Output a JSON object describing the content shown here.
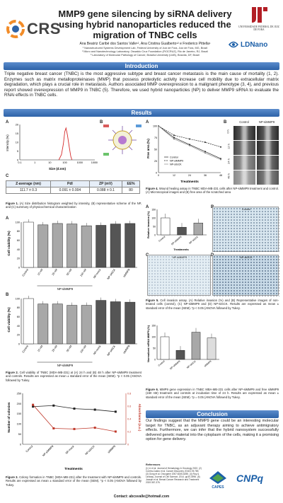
{
  "header": {
    "logo_text": "CRS",
    "title_line1": "MMP9 gene silencing by siRNA delivery",
    "title_line2": "using hybrid nanoparticles reduced the",
    "title_line3": "migration of TNBC cells",
    "authors": "Ana Beatriz Caribé dos Santos Valle¹², Ana Cristina Gualberto¹² e Frederico Pittella¹",
    "affil1": "¹ Nanostructured Systems Development Lab, Federal University of Juiz de Fora, Juiz de Fora, MG, Brazil",
    "affil2": "² Micro and Nanotechnology Laboratory, Oswaldo Cruz Foundation (FIOCRUZ), Rio de Janeiro, RJ, Brazil",
    "affil3": "³ Laboratory of Molecular Pathology of Cancer, Brasília University (UnB), Brasília, DF, Brazil",
    "ufjf_text": "UNIVERSIDADE FEDERAL DE JUIZ DE FORA",
    "ldnano": "LDNano"
  },
  "sections": {
    "introduction": "Introduction",
    "results": "Results",
    "conclusion": "Conclusion"
  },
  "introduction_text": "Triple negative breast cancer (TNBC) is the most aggressive subtype and breast cancer metastasis is the main cause of mortality (1, 2). Enzymes such as matrix metalloproteinases (MMP) that possess proteolytic activity increase cell mobility due to extracellular matrix degradation, which plays a crucial role in metastasis. Authors associated MMP overexpression to a malignant phenotype (3, 4), and previous report showed overexpression of MMP9 in TNBC (5). Therefore, we used hybrid nanoparticles (NP) to deliver MMP9 siRNA to evaluate the RNAi effects in TNBC cells.",
  "fig1": {
    "a_label": "A",
    "b_label": "B",
    "c_label": "C",
    "ylabel": "Intensity (%)",
    "xlabel": "Size (d.nm)",
    "xticks": [
      "0.1",
      "1",
      "10",
      "100",
      "1000",
      "10000"
    ],
    "yticks": [
      "0",
      "5",
      "10",
      "15",
      "20"
    ],
    "table_headers": [
      "Z-average (nm)",
      "PdI",
      "ZP (mV)",
      "EE%"
    ],
    "table_values": [
      "111.7 ± 0.3",
      "0.091 ± 0.004",
      "0.088 ± 0.1",
      "80"
    ],
    "caption_bold": "Figure 1.",
    "caption": " (A) Size distribution histogram weighted by intensity, (B) representative scheme of the NP, and (C) summary of physicochemical characterization"
  },
  "fig2": {
    "a_label": "A",
    "b_label": "B",
    "ylabel": "Cell viability (%)",
    "yticks": [
      "0",
      "20",
      "40",
      "60",
      "80",
      "100"
    ],
    "categories": [
      "Control",
      "10 nM",
      "25 nM",
      "50 nM",
      "100 nM",
      "NP-mock",
      "NP-siGCK",
      "siMMP9"
    ],
    "group_label": "NP-siMMP9",
    "caption_bold": "Figure 2.",
    "caption": " Cell viability of TNBC (MDA-MB-231) at (A) 24 h and (B) 48 h after NP-siMMP9 treatment and controls. Results are expressed as mean ± standard error of the mean (SEM). *p < 0.05 (ANOVA followed by Tukey."
  },
  "fig3": {
    "ylabel_left": "Number of colonies",
    "ylabel_right": "Absorbance (a.u.)",
    "xlabel": "Treatments",
    "categories": [
      "Control",
      "NP-siMMP9",
      "NP-mock",
      "NP-siGCK",
      "siMMP9"
    ],
    "caption_bold": "Figure 3.",
    "caption": " Colony formation in TNBC (MDA-MB-231) after the treatment with NP-siMMP9 and controls. Results are expressed as mean ± standard error of the mean (SEM). *p < 0.05 (ANOVA followed by Tukey."
  },
  "fig4": {
    "a_label": "A",
    "b_label": "B",
    "ylabel": "Free area (%)",
    "xlabel": "Treatments",
    "xticks": [
      "0",
      "12",
      "24",
      "36",
      "48"
    ],
    "legend": [
      "Control",
      "NP-siMMP9",
      "NP-siGCK"
    ],
    "col_control": "Control",
    "col_treated": "NP-siMMP9",
    "rows": [
      "0 h",
      "12 h",
      "24 h",
      "48 h"
    ],
    "caption_bold": "Figure 4.",
    "caption": " Wound healing assay in TNBC MDA-MB-231 cells after NP-siMMP9 treatment and control. (A) Microscopical images and (B) free area of the scratched area"
  },
  "fig5": {
    "a_label": "A",
    "b_label": "B",
    "c_label": "C",
    "d_label": "D",
    "ylabel": "Relative invasion (%)",
    "xlabel": "Treatments",
    "categories": [
      "Control",
      "NP-siMMP9",
      "NP-siGCK"
    ],
    "img_b": "Control",
    "img_c": "NP-siMMP9",
    "img_d": "NP-siGCK",
    "caption_bold": "Figure 5.",
    "caption": " Cell invasion assay. (A) Relative invasion (%) and (B) Representative images of non-treated cells (control), (C) NP-siMMP9 and (D) NP-siGCK. Results are expressed as mean ± standard error of the mean (SEM). *p < 0.05 (ANOVA followed by Tukey."
  },
  "fig6": {
    "ylabel": "Normalized mRNA MMP9 (%)",
    "categories": [
      "Control",
      "NP-siMMP9",
      "NP-siGCK",
      "siMMP9"
    ],
    "caption_bold": "Figure 6.",
    "caption": " MMP9 gene expression in TNBC MBA-MB-231 cells after NP-siMMP9 and free siMMP9 (150 nM) treatment and controls at incubation time of 24 h. Results are expressed as mean ± standard error of the mean (SEM). *p = 0.05 (ANOVA followed by Tukey."
  },
  "conclusion_text": "Our findings suggest that the MMP9 gene could be an interesting molecular target for TNBC, as an adjuvant therapy aiming to achieve antimigratory effects. Furthermore, we can infer that the hybrid nanosystem successfully delivered genetic material into the cytoplasm of the cells, making it a promising option for gene delivery.",
  "references_title": "References",
  "references": "(1) Li et al. Journal of Hematology & Oncology 2022. (2) Corrêa-Castro et al. Cancer Discovery 2018;178:789. (3) Gong et al. Oncogene 2007;8245-8255. (4) Roy & Lindsay. Journal of Cell Science, 2014. pp30-3996. (5) Joseph et al. Breast Cancer Research and Treatment 2020:367-376.",
  "funders": [
    "CAPES",
    "CNPq"
  ],
  "contact": "Contact: abcsvalle@hotmail.com",
  "colors": {
    "header_bar": "#2e63a8",
    "bar_gray": "#a8a8a8",
    "bar_dark": "#555555",
    "line_red": "#c0392b",
    "line_black": "#222222",
    "ldnano_blue": "#1b5fa8"
  },
  "chart_data": [
    {
      "type": "line",
      "id": "fig1A",
      "xlabel": "Size (d.nm)",
      "ylabel": "Intensity (%)",
      "x_scale": "log",
      "x": [
        40,
        60,
        80,
        100,
        120,
        150,
        200,
        250,
        300
      ],
      "values": [
        0,
        3,
        9,
        16,
        18,
        14,
        7,
        2,
        0
      ],
      "ylim": [
        0,
        20
      ]
    },
    {
      "type": "bar",
      "id": "fig2A",
      "ylabel": "Cell viability (%)",
      "ylim": [
        0,
        100
      ],
      "categories": [
        "Control",
        "10 nM",
        "25 nM",
        "50 nM",
        "100 nM",
        "NP-mock",
        "NP-siGCK",
        "siMMP9"
      ],
      "values": [
        100,
        94,
        97,
        96,
        92,
        93,
        96,
        97
      ]
    },
    {
      "type": "bar",
      "id": "fig2B",
      "ylabel": "Cell viability (%)",
      "ylim": [
        0,
        100
      ],
      "categories": [
        "Control",
        "10 nM",
        "25 nM",
        "50 nM",
        "100 nM",
        "NP-mock",
        "NP-siGCK",
        "siMMP9"
      ],
      "values": [
        100,
        88,
        88,
        85,
        85,
        96,
        93,
        92
      ]
    },
    {
      "type": "line",
      "id": "fig3",
      "xlabel": "Treatments",
      "categories": [
        "Control",
        "NP-siMMP9",
        "NP-mock",
        "NP-siGCK",
        "siMMP9"
      ],
      "series": [
        {
          "name": "Number of colonies",
          "values": [
            185,
            190,
            175,
            170,
            160
          ]
        },
        {
          "name": "Absorbance (a.u.)",
          "values": [
            0.62,
            0.25,
            0.24,
            0.26,
            0.2
          ]
        }
      ],
      "ylim_left": [
        0,
        250
      ],
      "ylim_right": [
        0,
        0.8
      ]
    },
    {
      "type": "line",
      "id": "fig4B",
      "xlabel": "Treatments",
      "ylabel": "Free area (%)",
      "ylim": [
        0,
        100
      ],
      "x": [
        0,
        12,
        24,
        36,
        48
      ],
      "series": [
        {
          "name": "Control",
          "values": [
            100,
            75,
            60,
            45,
            30
          ]
        },
        {
          "name": "NP-siMMP9",
          "values": [
            100,
            80,
            72,
            65,
            55
          ]
        },
        {
          "name": "NP-siGCK",
          "values": [
            100,
            72,
            58,
            42,
            28
          ]
        }
      ]
    },
    {
      "type": "bar",
      "id": "fig5A",
      "xlabel": "Treatments",
      "ylabel": "Relative invasion (%)",
      "ylim": [
        0,
        150
      ],
      "categories": [
        "Control",
        "NP-siMMP9",
        "NP-siGCK"
      ],
      "values": [
        100,
        45,
        70
      ]
    },
    {
      "type": "bar",
      "id": "fig6",
      "ylabel": "Normalized mRNA MMP9 (%)",
      "ylim": [
        0,
        150
      ],
      "categories": [
        "Control",
        "NP-siMMP9",
        "NP-siGCK",
        "siMMP9"
      ],
      "values": [
        100,
        40,
        120,
        95
      ]
    }
  ]
}
